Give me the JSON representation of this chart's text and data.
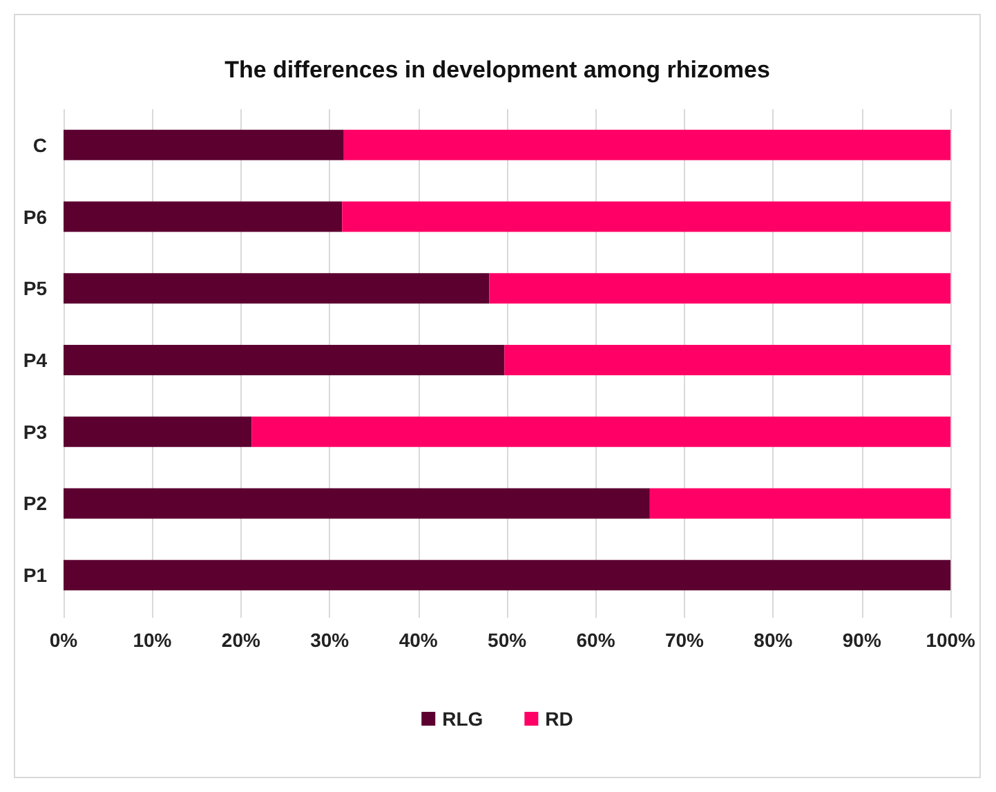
{
  "chart_data": {
    "type": "bar",
    "orientation": "horizontal",
    "stacked": true,
    "title": "The differences in development among rhizomes",
    "categories": [
      "C",
      "P6",
      "P5",
      "P4",
      "P3",
      "P2",
      "P1"
    ],
    "series": [
      {
        "name": "RLG",
        "color": "#5c0030",
        "values": [
          31.6,
          31.4,
          48,
          49.7,
          21.2,
          66.1,
          100
        ]
      },
      {
        "name": "RD",
        "color": "#ff0066",
        "values": [
          68.4,
          68.6,
          52,
          50.3,
          78.8,
          33.9,
          0
        ]
      }
    ],
    "xlim": [
      0,
      100
    ],
    "xticks": [
      {
        "value": 0,
        "label": "0%"
      },
      {
        "value": 10,
        "label": "10%"
      },
      {
        "value": 20,
        "label": "20%"
      },
      {
        "value": 30,
        "label": "30%"
      },
      {
        "value": 40,
        "label": "40%"
      },
      {
        "value": 50,
        "label": "50%"
      },
      {
        "value": 60,
        "label": "60%"
      },
      {
        "value": 70,
        "label": "70%"
      },
      {
        "value": 80,
        "label": "80%"
      },
      {
        "value": 90,
        "label": "90%"
      },
      {
        "value": 100,
        "label": "100%"
      }
    ],
    "grid": "x",
    "legend": "bottom"
  }
}
